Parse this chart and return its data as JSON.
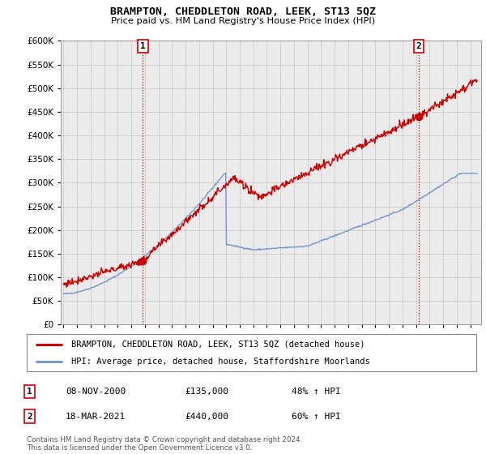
{
  "title": "BRAMPTON, CHEDDLETON ROAD, LEEK, ST13 5QZ",
  "subtitle": "Price paid vs. HM Land Registry's House Price Index (HPI)",
  "ylim": [
    0,
    600000
  ],
  "yticks": [
    0,
    50000,
    100000,
    150000,
    200000,
    250000,
    300000,
    350000,
    400000,
    450000,
    500000,
    550000,
    600000
  ],
  "xlim_start": 1994.8,
  "xlim_end": 2025.8,
  "grid_color": "#cccccc",
  "background_color": "#ffffff",
  "plot_bg_color": "#ebebeb",
  "sale1": {
    "date_num": 2000.86,
    "price": 135000,
    "label": "1"
  },
  "sale2": {
    "date_num": 2021.21,
    "price": 440000,
    "label": "2"
  },
  "sale_color": "#cc0000",
  "sale_marker_size": 6,
  "vline_color": "#cc0000",
  "legend_label_red": "BRAMPTON, CHEDDLETON ROAD, LEEK, ST13 5QZ (detached house)",
  "legend_label_blue": "HPI: Average price, detached house, Staffordshire Moorlands",
  "table_row1": [
    "1",
    "08-NOV-2000",
    "£135,000",
    "48% ↑ HPI"
  ],
  "table_row2": [
    "2",
    "18-MAR-2021",
    "£440,000",
    "60% ↑ HPI"
  ],
  "footer": "Contains HM Land Registry data © Crown copyright and database right 2024.\nThis data is licensed under the Open Government Licence v3.0.",
  "red_line_color": "#cc0000",
  "blue_line_color": "#7799cc",
  "line_width": 1.0
}
